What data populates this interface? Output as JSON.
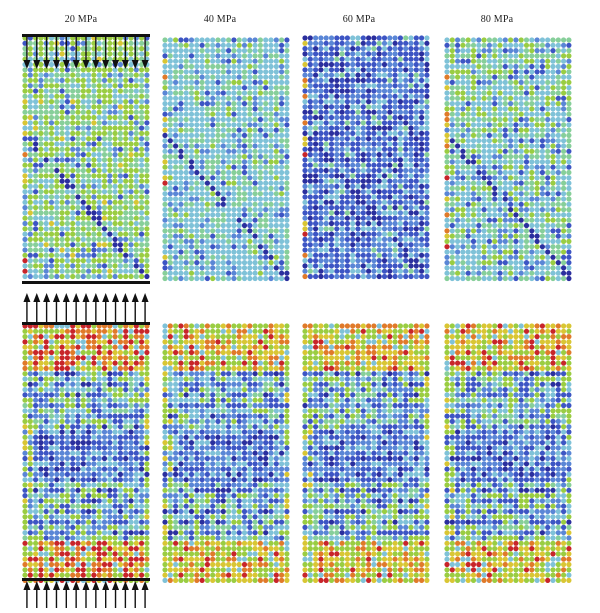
{
  "labels": [
    "20 MPa",
    "40 MPa",
    "60 MPa",
    "80 MPa"
  ],
  "palette": {
    "deep_blue": "#2b2f9e",
    "blue": "#3d55c4",
    "mid_blue": "#5a86d6",
    "light_blue": "#7fc2d8",
    "cyan_green": "#87cf9a",
    "green": "#9acd42",
    "yellow": "#d9c634",
    "orange": "#e07a2a",
    "red": "#c8252a",
    "bar": "#111111"
  },
  "panels": [
    {
      "row": "top",
      "column": 0,
      "theme": "mixed_green",
      "crack": true
    },
    {
      "row": "top",
      "column": 1,
      "theme": "cyan",
      "crack": true
    },
    {
      "row": "top",
      "column": 2,
      "theme": "blue",
      "crack": true
    },
    {
      "row": "top",
      "column": 3,
      "theme": "mixed_cyan",
      "crack": true
    },
    {
      "row": "bottom",
      "column": 0,
      "theme": "stress_bands_red"
    },
    {
      "row": "bottom",
      "column": 1,
      "theme": "stress_bands_orange"
    },
    {
      "row": "bottom",
      "column": 2,
      "theme": "stress_bands_mixed"
    },
    {
      "row": "bottom",
      "column": 3,
      "theme": "stress_bands_mixed"
    }
  ]
}
